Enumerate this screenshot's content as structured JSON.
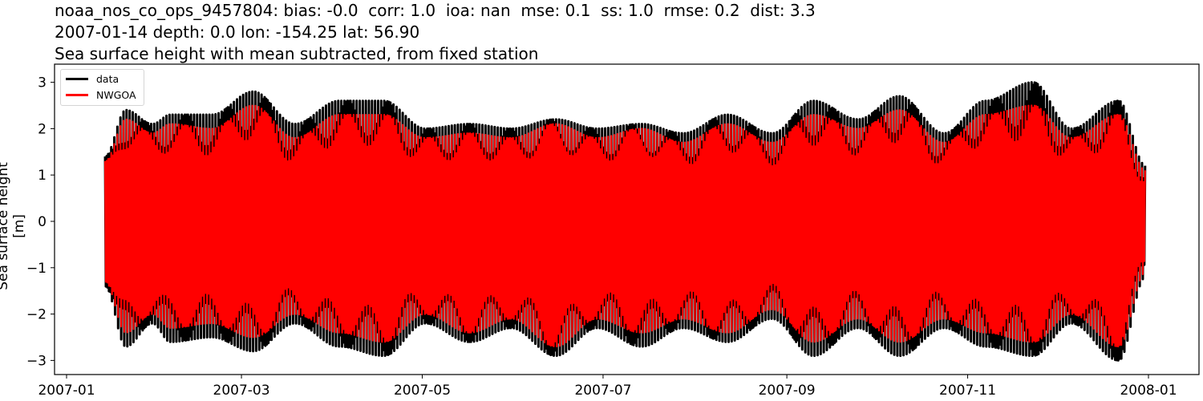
{
  "figure": {
    "title_line1": "noaa_nos_co_ops_9457804: bias: -0.0  corr: 1.0  ioa: nan  mse: 0.1  ss: 1.0  rmse: 0.2  dist: 3.3",
    "title_line2": "2007-01-14 depth: 0.0 lon: -154.25 lat: 56.90",
    "title_line3": "Sea surface height with mean subtracted, from fixed station"
  },
  "colors": {
    "data": "#000000",
    "model": "#ff0000",
    "axes": "#000000",
    "background": "#ffffff"
  },
  "chart_data": {
    "type": "line",
    "title": "noaa_nos_co_ops_9457804: bias: -0.0  corr: 1.0  ioa: nan  mse: 0.1  ss: 1.0  rmse: 0.2  dist: 3.3 / 2007-01-14 depth: 0.0 lon: -154.25 lat: 56.90 / Sea surface height with mean subtracted, from fixed station",
    "xlabel": "",
    "ylabel": "Sea surface height [m]",
    "ylim": [
      -3.3,
      3.3
    ],
    "xlim": [
      "2006-12-24",
      "2008-01-28"
    ],
    "x_ticks": [
      "2007-01",
      "2007-03",
      "2007-05",
      "2007-07",
      "2007-09",
      "2007-11",
      "2008-01"
    ],
    "y_ticks": [
      -3,
      -2,
      -1,
      0,
      1,
      2,
      3
    ],
    "grid": false,
    "legend_position": "upper left",
    "time_range": [
      "2007-01-14",
      "2007-12-31"
    ],
    "description": "Semi-diurnal/mixed tidal signal with fortnightly spring-neap envelope; values are approximate envelope maxima/minima read from the plot",
    "series": [
      {
        "name": "data",
        "color": "#000000",
        "envelope_dates": [
          "2007-01-14",
          "2007-01-21",
          "2007-01-30",
          "2007-02-05",
          "2007-02-19",
          "2007-03-05",
          "2007-03-19",
          "2007-04-03",
          "2007-04-18",
          "2007-05-02",
          "2007-05-17",
          "2007-05-31",
          "2007-06-15",
          "2007-06-29",
          "2007-07-14",
          "2007-07-28",
          "2007-08-12",
          "2007-08-27",
          "2007-09-10",
          "2007-09-25",
          "2007-10-09",
          "2007-10-24",
          "2007-11-07",
          "2007-11-23",
          "2007-12-06",
          "2007-12-22",
          "2007-12-31"
        ],
        "envelope_max": [
          1.4,
          2.4,
          2.1,
          2.3,
          2.3,
          2.8,
          2.1,
          2.6,
          2.6,
          2.0,
          2.1,
          2.0,
          2.2,
          2.0,
          2.1,
          1.9,
          2.3,
          1.9,
          2.6,
          2.2,
          2.7,
          1.9,
          2.6,
          3.0,
          2.0,
          2.6,
          1.2
        ],
        "envelope_min": [
          -1.4,
          -2.7,
          -2.2,
          -2.6,
          -2.5,
          -2.8,
          -2.2,
          -2.7,
          -2.9,
          -2.2,
          -2.6,
          -2.3,
          -2.9,
          -2.3,
          -2.7,
          -2.3,
          -2.6,
          -2.1,
          -2.9,
          -2.3,
          -2.9,
          -2.3,
          -2.7,
          -2.9,
          -2.2,
          -3.0,
          -1.2
        ]
      },
      {
        "name": "NWGOA",
        "color": "#ff0000",
        "envelope_dates": [
          "2007-01-14",
          "2007-01-21",
          "2007-01-30",
          "2007-02-05",
          "2007-02-19",
          "2007-03-05",
          "2007-03-19",
          "2007-04-03",
          "2007-04-18",
          "2007-05-02",
          "2007-05-17",
          "2007-05-31",
          "2007-06-15",
          "2007-06-29",
          "2007-07-14",
          "2007-07-28",
          "2007-08-12",
          "2007-08-27",
          "2007-09-10",
          "2007-09-25",
          "2007-10-09",
          "2007-10-24",
          "2007-11-07",
          "2007-11-23",
          "2007-12-06",
          "2007-12-22",
          "2007-12-31"
        ],
        "envelope_max": [
          1.3,
          2.2,
          1.9,
          2.1,
          2.0,
          2.5,
          1.8,
          2.3,
          2.3,
          1.8,
          1.9,
          1.8,
          2.1,
          1.8,
          2.0,
          1.7,
          2.1,
          1.7,
          2.3,
          2.0,
          2.4,
          1.7,
          2.3,
          2.5,
          1.8,
          2.3,
          1.1
        ],
        "envelope_min": [
          -1.3,
          -2.4,
          -2.0,
          -2.3,
          -2.2,
          -2.5,
          -2.0,
          -2.4,
          -2.6,
          -2.0,
          -2.4,
          -2.1,
          -2.7,
          -2.1,
          -2.4,
          -2.1,
          -2.4,
          -1.9,
          -2.6,
          -2.1,
          -2.6,
          -2.1,
          -2.4,
          -2.6,
          -2.0,
          -2.7,
          -1.1
        ]
      }
    ]
  },
  "legend": {
    "items": [
      {
        "label": "data",
        "color": "#000000"
      },
      {
        "label": "NWGOA",
        "color": "#ff0000"
      }
    ]
  }
}
